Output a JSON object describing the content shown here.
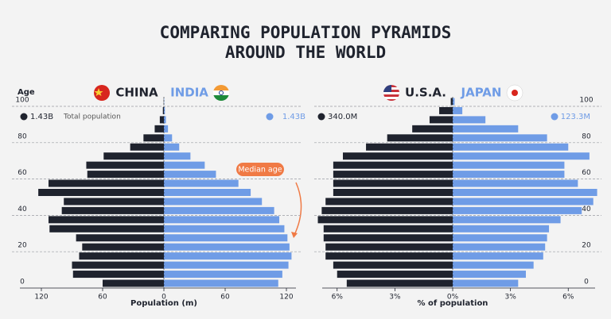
{
  "title": [
    "COMPARING POPULATION PYRAMIDS",
    "AROUND THE WORLD"
  ],
  "chart_data": [
    {
      "type": "pyramid",
      "ylabel": "Age",
      "xlabel": "Population (m)",
      "total_label": "Total population",
      "annotation": "Median age",
      "ages": [
        0,
        5,
        10,
        15,
        20,
        25,
        30,
        35,
        40,
        45,
        50,
        55,
        60,
        65,
        70,
        75,
        80,
        85,
        90,
        95,
        100
      ],
      "ylim": [
        0,
        100
      ],
      "yticks": [
        0,
        20,
        40,
        60,
        80,
        100
      ],
      "grid": true,
      "xlim": [
        -127,
        127
      ],
      "xticks": [
        {
          "value": -120,
          "label": "120"
        },
        {
          "value": -60,
          "label": "60"
        },
        0,
        60,
        120
      ],
      "series": [
        {
          "name": "CHINA",
          "color": "#1f232e",
          "side": "left",
          "total": "1.43B",
          "values": [
            60,
            89,
            90,
            83,
            80,
            86,
            112,
            113,
            100,
            98,
            123,
            113,
            75,
            76,
            59,
            33,
            20,
            9,
            4,
            1,
            0.2
          ]
        },
        {
          "name": "INDIA",
          "color": "#6f9ce6",
          "side": "right",
          "total": "1.43B",
          "values": [
            112,
            116,
            122,
            125,
            123,
            121,
            118,
            113,
            108,
            96,
            85,
            73,
            51,
            40,
            26,
            15,
            8,
            4,
            2,
            1,
            0.3
          ]
        }
      ]
    },
    {
      "type": "pyramid",
      "xlabel": "% of population",
      "ages": [
        0,
        5,
        10,
        15,
        20,
        25,
        30,
        35,
        40,
        45,
        50,
        55,
        60,
        65,
        70,
        75,
        80,
        85,
        90,
        95,
        100
      ],
      "ylim": [
        0,
        100
      ],
      "yticks": [
        0,
        20,
        40,
        60,
        80,
        100
      ],
      "grid": true,
      "xlim": [
        -7.6,
        7.6
      ],
      "xticks": [
        {
          "value": -6,
          "label": "6%"
        },
        {
          "value": -3,
          "label": "3%"
        },
        {
          "value": 0,
          "label": "0%"
        },
        {
          "value": 3,
          "label": "3%"
        },
        {
          "value": 6,
          "label": "6%"
        }
      ],
      "series": [
        {
          "name": "U.S.A.",
          "color": "#1f232e",
          "side": "left",
          "total": "340.0M",
          "values": [
            5.5,
            6.0,
            6.2,
            6.6,
            6.6,
            6.7,
            6.7,
            7.0,
            6.8,
            6.6,
            6.2,
            6.2,
            6.2,
            6.2,
            5.7,
            4.5,
            3.4,
            2.1,
            1.2,
            0.7,
            0.1
          ]
        },
        {
          "name": "JAPAN",
          "color": "#6f9ce6",
          "side": "right",
          "total": "123.3M",
          "values": [
            3.4,
            3.8,
            4.2,
            4.7,
            4.8,
            4.9,
            5.0,
            5.6,
            6.7,
            7.3,
            7.5,
            6.5,
            5.8,
            5.8,
            7.1,
            6.0,
            4.9,
            3.4,
            1.7,
            0.5,
            0.1
          ]
        }
      ]
    }
  ]
}
